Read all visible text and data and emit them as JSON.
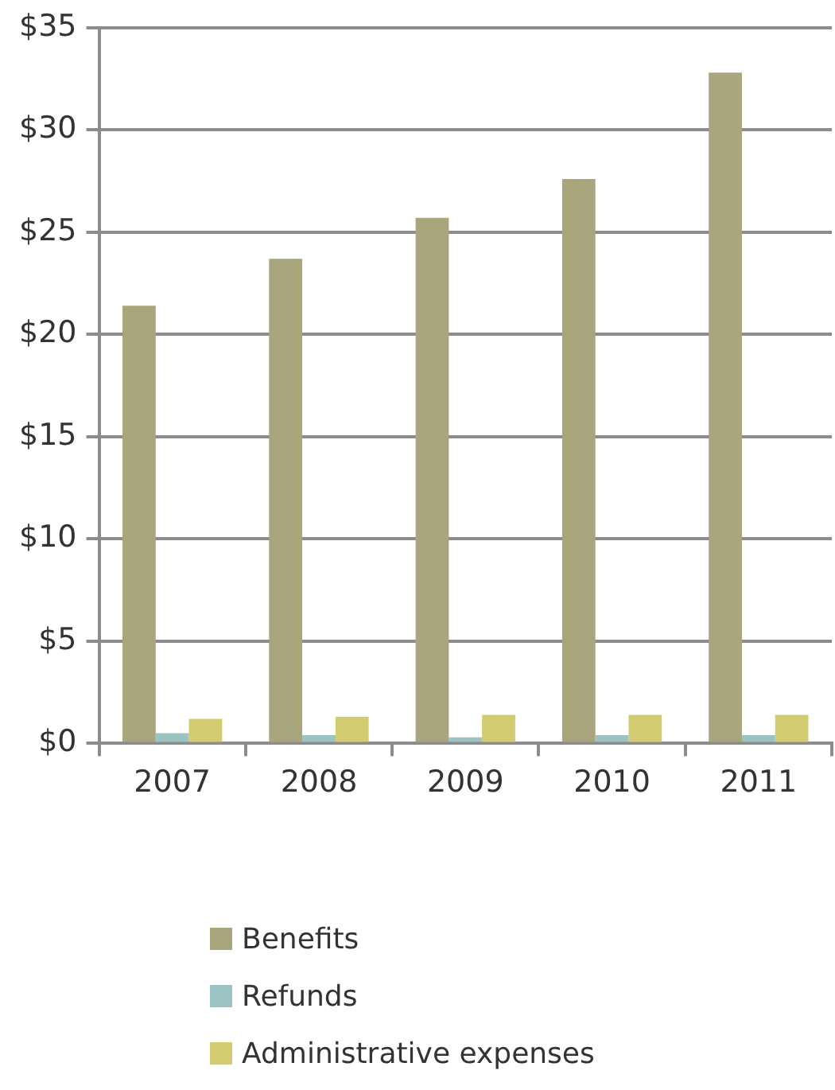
{
  "chart_data": {
    "type": "bar",
    "categories": [
      "2007",
      "2008",
      "2009",
      "2010",
      "2011"
    ],
    "series": [
      {
        "name": "Benefits",
        "color": "#a9a57c",
        "values": [
          21.4,
          23.7,
          25.7,
          27.6,
          32.8
        ]
      },
      {
        "name": "Refunds",
        "color": "#9cc3c3",
        "values": [
          0.5,
          0.4,
          0.3,
          0.4,
          0.4
        ]
      },
      {
        "name": "Administrative expenses",
        "color": "#d3cb6f",
        "values": [
          1.2,
          1.3,
          1.4,
          1.4,
          1.4
        ]
      }
    ],
    "ylim": [
      0,
      35
    ],
    "yticks": [
      {
        "value": 0,
        "label": "$0"
      },
      {
        "value": 5,
        "label": "$5"
      },
      {
        "value": 10,
        "label": "$10"
      },
      {
        "value": 15,
        "label": "$15"
      },
      {
        "value": 20,
        "label": "$20"
      },
      {
        "value": 25,
        "label": "$25"
      },
      {
        "value": 30,
        "label": "$30"
      },
      {
        "value": 35,
        "label": "$35"
      }
    ],
    "grid": "y",
    "legend": "bottom"
  }
}
